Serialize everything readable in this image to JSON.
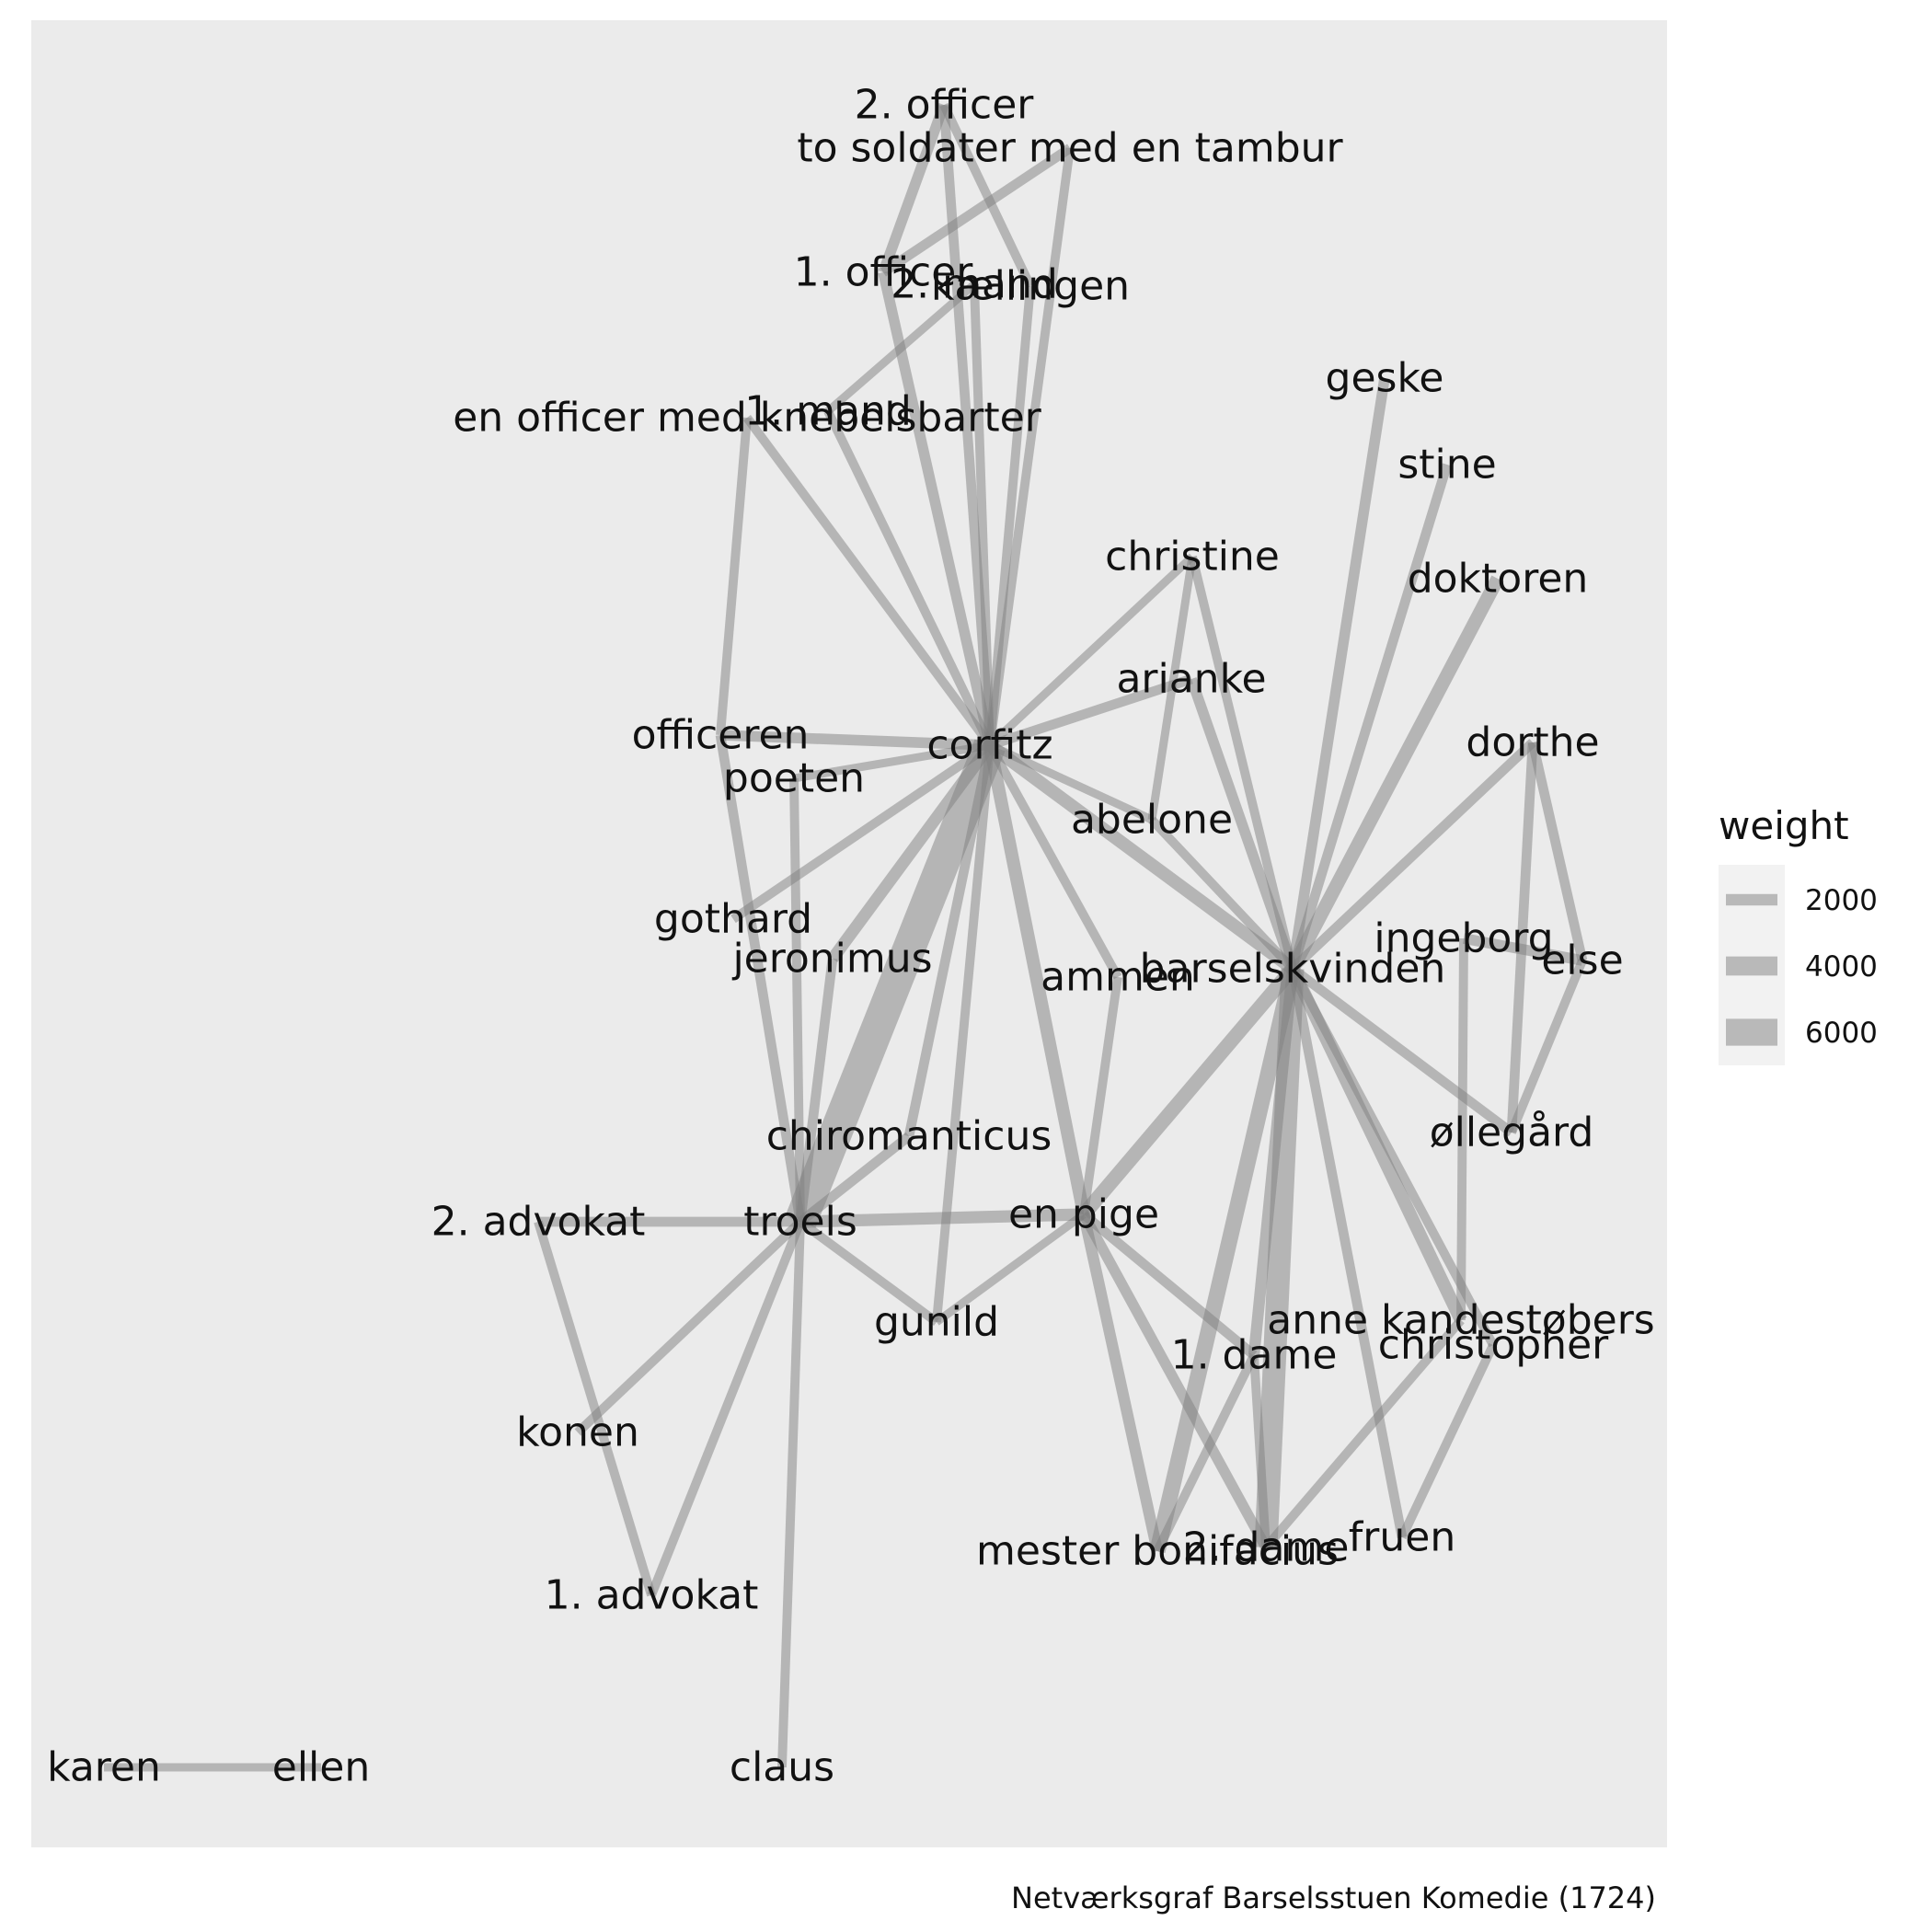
{
  "caption": "Netværksgraf Barselsstuen Komedie (1724)",
  "edge_color": "#7f7f7f",
  "panel_color": "#ebebeb",
  "legend": {
    "title": "weight",
    "entries": [
      {
        "label": "2000",
        "value": 2000
      },
      {
        "label": "4000",
        "value": 4000
      },
      {
        "label": "6000",
        "value": 6000
      }
    ]
  },
  "nodes": [
    {
      "id": "corfitz",
      "label": "corfitz"
    },
    {
      "id": "troels",
      "label": "troels"
    },
    {
      "id": "barselskvinden",
      "label": "barselskvinden"
    },
    {
      "id": "en_pige",
      "label": "en pige"
    },
    {
      "id": "2_officer",
      "label": "2. officer"
    },
    {
      "id": "to_soldater",
      "label": "to soldater med en tambur"
    },
    {
      "id": "1_officer",
      "label": "1. officer"
    },
    {
      "id": "2_mand",
      "label": "2. mand"
    },
    {
      "id": "kaellingen",
      "label": "kællingen"
    },
    {
      "id": "1_mand",
      "label": "1. mand"
    },
    {
      "id": "en_officer",
      "label": "en officer med knebelsbarter"
    },
    {
      "id": "geske",
      "label": "geske"
    },
    {
      "id": "stine",
      "label": "stine"
    },
    {
      "id": "christine",
      "label": "christine"
    },
    {
      "id": "doktoren",
      "label": "doktoren"
    },
    {
      "id": "arianke",
      "label": "arianke"
    },
    {
      "id": "dorthe",
      "label": "dorthe"
    },
    {
      "id": "officeren",
      "label": "officeren"
    },
    {
      "id": "poeten",
      "label": "poeten"
    },
    {
      "id": "abelone",
      "label": "abelone"
    },
    {
      "id": "gothard",
      "label": "gothard"
    },
    {
      "id": "jeronimus",
      "label": "jeronimus"
    },
    {
      "id": "ammen",
      "label": "ammen"
    },
    {
      "id": "ingeborg",
      "label": "ingeborg"
    },
    {
      "id": "else",
      "label": "else"
    },
    {
      "id": "ollegard",
      "label": "øllegård"
    },
    {
      "id": "chiromanticus",
      "label": "chiromanticus"
    },
    {
      "id": "2_advokat",
      "label": "2. advokat"
    },
    {
      "id": "gunild",
      "label": "gunild"
    },
    {
      "id": "anne",
      "label": "anne kandestøbers"
    },
    {
      "id": "christopher",
      "label": "christopher"
    },
    {
      "id": "1_dame",
      "label": "1. dame"
    },
    {
      "id": "konen",
      "label": "konen"
    },
    {
      "id": "mester_bonifacius",
      "label": "mester bonifacius"
    },
    {
      "id": "2_dame",
      "label": "2. dame"
    },
    {
      "id": "fruen",
      "label": "fruen"
    },
    {
      "id": "1_advokat",
      "label": "1. advokat"
    },
    {
      "id": "karen",
      "label": "karen"
    },
    {
      "id": "ellen",
      "label": "ellen"
    },
    {
      "id": "claus",
      "label": "claus"
    }
  ],
  "edges": [
    {
      "source": "corfitz",
      "target": "troels",
      "weight": 7500
    },
    {
      "source": "barselskvinden",
      "target": "2_dame",
      "weight": 5000
    },
    {
      "source": "barselskvinden",
      "target": "mester_bonifacius",
      "weight": 3200
    },
    {
      "source": "barselskvinden",
      "target": "en_pige",
      "weight": 2800
    },
    {
      "source": "barselskvinden",
      "target": "doktoren",
      "weight": 2600
    },
    {
      "source": "barselskvinden",
      "target": "anne",
      "weight": 2400
    },
    {
      "source": "barselskvinden",
      "target": "corfitz",
      "weight": 2400
    },
    {
      "source": "barselskvinden",
      "target": "1_dame",
      "weight": 2000
    },
    {
      "source": "barselskvinden",
      "target": "geske",
      "weight": 1800
    },
    {
      "source": "barselskvinden",
      "target": "stine",
      "weight": 1600
    },
    {
      "source": "barselskvinden",
      "target": "christine",
      "weight": 1400
    },
    {
      "source": "barselskvinden",
      "target": "arianke",
      "weight": 1800
    },
    {
      "source": "barselskvinden",
      "target": "dorthe",
      "weight": 1600
    },
    {
      "source": "barselskvinden",
      "target": "abelone",
      "weight": 1400
    },
    {
      "source": "barselskvinden",
      "target": "ollegard",
      "weight": 1600
    },
    {
      "source": "barselskvinden",
      "target": "christopher",
      "weight": 1400
    },
    {
      "source": "barselskvinden",
      "target": "fruen",
      "weight": 1600
    },
    {
      "source": "corfitz",
      "target": "en_pige",
      "weight": 2400
    },
    {
      "source": "corfitz",
      "target": "jeronimus",
      "weight": 2200
    },
    {
      "source": "corfitz",
      "target": "officeren",
      "weight": 1800
    },
    {
      "source": "corfitz",
      "target": "arianke",
      "weight": 1600
    },
    {
      "source": "corfitz",
      "target": "christine",
      "weight": 1200
    },
    {
      "source": "corfitz",
      "target": "abelone",
      "weight": 1200
    },
    {
      "source": "corfitz",
      "target": "ammen",
      "weight": 1400
    },
    {
      "source": "corfitz",
      "target": "gothard",
      "weight": 1400
    },
    {
      "source": "corfitz",
      "target": "chiromanticus",
      "weight": 1600
    },
    {
      "source": "corfitz",
      "target": "gunild",
      "weight": 1400
    },
    {
      "source": "corfitz",
      "target": "en_officer",
      "weight": 1400
    },
    {
      "source": "corfitz",
      "target": "1_mand",
      "weight": 1400
    },
    {
      "source": "corfitz",
      "target": "1_officer",
      "weight": 1800
    },
    {
      "source": "corfitz",
      "target": "2_officer",
      "weight": 1600
    },
    {
      "source": "corfitz",
      "target": "to_soldater",
      "weight": 1400
    },
    {
      "source": "corfitz",
      "target": "2_mand",
      "weight": 1400
    },
    {
      "source": "corfitz",
      "target": "kaellingen",
      "weight": 1400
    },
    {
      "source": "corfitz",
      "target": "poeten",
      "weight": 1200
    },
    {
      "source": "troels",
      "target": "en_pige",
      "weight": 2200
    },
    {
      "source": "troels",
      "target": "2_advokat",
      "weight": 1600
    },
    {
      "source": "troels",
      "target": "officeren",
      "weight": 1600
    },
    {
      "source": "troels",
      "target": "poeten",
      "weight": 1400
    },
    {
      "source": "troels",
      "target": "jeronimus",
      "weight": 1600
    },
    {
      "source": "troels",
      "target": "chiromanticus",
      "weight": 1600
    },
    {
      "source": "troels",
      "target": "gunild",
      "weight": 1400
    },
    {
      "source": "troels",
      "target": "konen",
      "weight": 1400
    },
    {
      "source": "troels",
      "target": "1_advokat",
      "weight": 1400
    },
    {
      "source": "troels",
      "target": "claus",
      "weight": 1400
    },
    {
      "source": "en_pige",
      "target": "ammen",
      "weight": 1400
    },
    {
      "source": "en_pige",
      "target": "gunild",
      "weight": 1200
    },
    {
      "source": "en_pige",
      "target": "mester_bonifacius",
      "weight": 2000
    },
    {
      "source": "en_pige",
      "target": "2_dame",
      "weight": 1800
    },
    {
      "source": "en_pige",
      "target": "1_dame",
      "weight": 1600
    },
    {
      "source": "2_advokat",
      "target": "1_advokat",
      "weight": 1400
    },
    {
      "source": "1_officer",
      "target": "2_officer",
      "weight": 1800
    },
    {
      "source": "1_officer",
      "target": "to_soldater",
      "weight": 1600
    },
    {
      "source": "2_officer",
      "target": "kaellingen",
      "weight": 1400
    },
    {
      "source": "1_mand",
      "target": "2_mand",
      "weight": 1200
    },
    {
      "source": "officeren",
      "target": "en_officer",
      "weight": 1400
    },
    {
      "source": "christine",
      "target": "abelone",
      "weight": 1200
    },
    {
      "source": "dorthe",
      "target": "else",
      "weight": 1600
    },
    {
      "source": "dorthe",
      "target": "ollegard",
      "weight": 1600
    },
    {
      "source": "else",
      "target": "ollegard",
      "weight": 1400
    },
    {
      "source": "ingeborg",
      "target": "else",
      "weight": 1800
    },
    {
      "source": "ingeborg",
      "target": "anne",
      "weight": 1400
    },
    {
      "source": "christopher",
      "target": "fruen",
      "weight": 1400
    },
    {
      "source": "1_dame",
      "target": "2_dame",
      "weight": 1400
    },
    {
      "source": "1_dame",
      "target": "mester_bonifacius",
      "weight": 1400
    },
    {
      "source": "anne",
      "target": "2_dame",
      "weight": 1400
    },
    {
      "source": "karen",
      "target": "ellen",
      "weight": 1200
    }
  ]
}
